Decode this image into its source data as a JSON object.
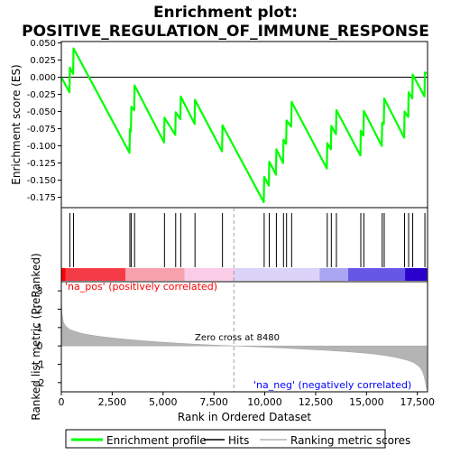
{
  "chart_data": {
    "type": "line",
    "title_line1": "Enrichment plot:",
    "title_line2": "POSITIVE_REGULATION_OF_IMMUNE_RESPONSE",
    "top_panel": {
      "ylabel": "Enrichment score (ES)",
      "ylim": [
        -0.19,
        0.052
      ],
      "yticks": [
        0.05,
        0.025,
        0.0,
        -0.025,
        -0.05,
        -0.075,
        -0.1,
        -0.125,
        -0.15,
        -0.175
      ],
      "ytick_labels": [
        "0.050",
        "0.025",
        "0.000",
        "-0.025",
        "-0.050",
        "-0.075",
        "-0.100",
        "-0.125",
        "-0.150",
        "-0.175"
      ],
      "color": "#00ff00",
      "es_profile": {
        "x": [
          0,
          400,
          420,
          580,
          600,
          3350,
          3370,
          3420,
          3440,
          3580,
          3600,
          5050,
          5070,
          5600,
          5620,
          5850,
          5870,
          6550,
          6570,
          7900,
          7920,
          9950,
          9970,
          10200,
          10220,
          10550,
          10570,
          10900,
          10920,
          11050,
          11070,
          11300,
          11320,
          13050,
          13070,
          13250,
          13270,
          13500,
          13520,
          14700,
          14720,
          14850,
          14870,
          15750,
          15770,
          15850,
          15870,
          16850,
          16870,
          17050,
          17070,
          17250,
          17270,
          17850,
          17870,
          17950
        ],
        "y": [
          0.0,
          -0.022,
          0.014,
          0.005,
          0.042,
          -0.11,
          -0.076,
          -0.079,
          -0.043,
          -0.048,
          -0.012,
          -0.095,
          -0.059,
          -0.084,
          -0.051,
          -0.061,
          -0.028,
          -0.068,
          -0.033,
          -0.108,
          -0.07,
          -0.182,
          -0.145,
          -0.158,
          -0.123,
          -0.142,
          -0.105,
          -0.125,
          -0.091,
          -0.097,
          -0.063,
          -0.072,
          -0.036,
          -0.133,
          -0.096,
          -0.105,
          -0.071,
          -0.083,
          -0.048,
          -0.114,
          -0.078,
          -0.085,
          -0.049,
          -0.1,
          -0.066,
          -0.068,
          -0.031,
          -0.088,
          -0.05,
          -0.058,
          -0.022,
          -0.031,
          0.004,
          -0.028,
          0.007,
          0.005
        ]
      }
    },
    "hits": {
      "legend": "Hits",
      "positions": [
        420,
        600,
        3370,
        3440,
        3600,
        5070,
        5620,
        5870,
        6570,
        7920,
        9970,
        10220,
        10570,
        10920,
        11070,
        11320,
        13070,
        13270,
        13520,
        14720,
        14870,
        15770,
        15870,
        16870,
        17070,
        17270,
        17870
      ]
    },
    "bottom_panel": {
      "ylabel": "Ranked list metric (PreRanked)",
      "xlabel": "Rank in Ordered Dataset",
      "ylim": [
        -2.5,
        3.5
      ],
      "yticks": [
        3,
        2,
        1,
        0,
        -1,
        -2
      ],
      "ytick_labels": [
        "3",
        "2",
        "1",
        "0",
        "-1",
        "-2"
      ],
      "metric_curve": {
        "x": [
          0,
          30,
          100,
          200,
          400,
          700,
          1000,
          1500,
          2000,
          3000,
          4000,
          5000,
          6000,
          7000,
          8480,
          9000,
          10000,
          11000,
          12000,
          13000,
          14000,
          15000,
          15500,
          16000,
          16500,
          17000,
          17300,
          17500,
          17650,
          17750,
          17800,
          17850,
          17900,
          17950
        ],
        "y": [
          2.6,
          1.8,
          1.3,
          1.1,
          0.9,
          0.78,
          0.68,
          0.58,
          0.5,
          0.38,
          0.28,
          0.2,
          0.13,
          0.07,
          0.0,
          -0.02,
          -0.07,
          -0.12,
          -0.18,
          -0.24,
          -0.31,
          -0.4,
          -0.46,
          -0.54,
          -0.64,
          -0.78,
          -0.9,
          -1.05,
          -1.2,
          -1.4,
          -1.55,
          -1.75,
          -2.0,
          -2.35
        ]
      },
      "zero_cross_label": "Zero cross at 8480",
      "zero_cross": 8480,
      "pos_label": "'na_pos' (positively correlated)",
      "neg_label": "'na_neg' (negatively correlated)",
      "pos_label_color": "#ff0000",
      "neg_label_color": "#0000ff"
    },
    "xlim": [
      0,
      18000
    ],
    "xticks": [
      0,
      2500,
      5000,
      7500,
      10000,
      12500,
      15000,
      17500
    ],
    "xtick_labels": [
      "0",
      "2,500",
      "5,000",
      "7,500",
      "10,000",
      "12,500",
      "15,000",
      "17,500"
    ],
    "legend": {
      "profile": "Enrichment profile",
      "hits": "Hits",
      "metric": "Ranking metric scores"
    },
    "colorbar_colors": [
      "#ff0000",
      "#f53c46",
      "#f7a1ad",
      "#fbcce8",
      "#dcd4f8",
      "#a9a6f2",
      "#6657e6",
      "#2a00cc"
    ],
    "colorbar_breaks": [
      0,
      200,
      3150,
      6050,
      8500,
      12700,
      14100,
      16900,
      17950
    ]
  }
}
